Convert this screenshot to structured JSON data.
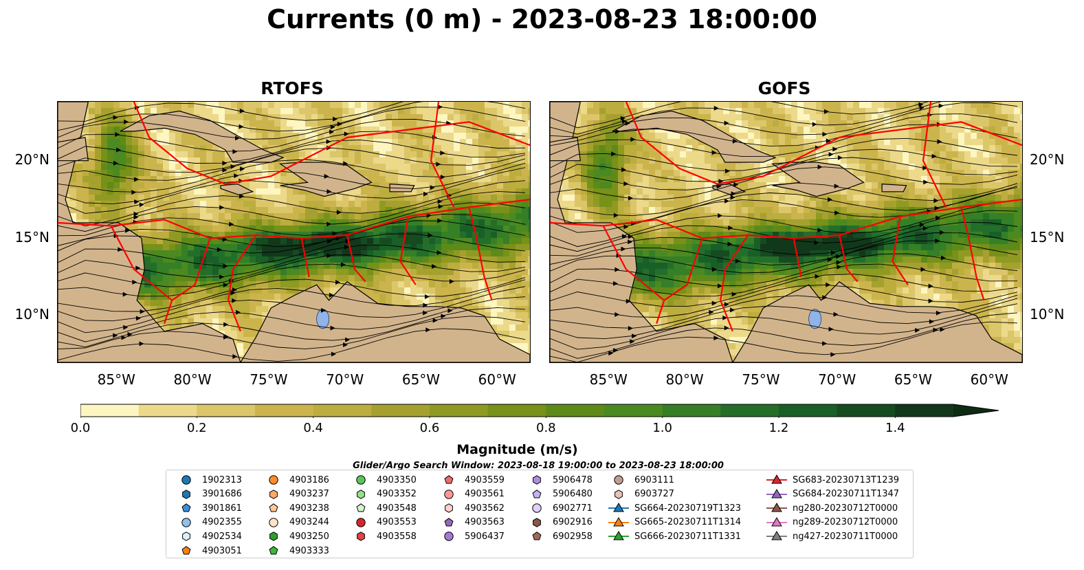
{
  "title": "Currents (0 m) - 2023-08-23 18:00:00",
  "panels": [
    {
      "title": "RTOFS",
      "id": "rtofs"
    },
    {
      "title": "GOFS",
      "id": "gofs"
    }
  ],
  "map": {
    "extent": {
      "lon_min": -89,
      "lon_max": -58,
      "lat_min": 7,
      "lat_max": 23.8
    },
    "lat_ticks": [
      "20°N",
      "15°N",
      "10°N"
    ],
    "lat_values": [
      20,
      15,
      10
    ],
    "lon_ticks": [
      "85°W",
      "80°W",
      "75°W",
      "70°W",
      "65°W",
      "60°W"
    ],
    "lon_values": [
      -85,
      -80,
      -75,
      -70,
      -65,
      -60
    ],
    "land_color": "#d2b48c",
    "boundary_color": "#ff0000"
  },
  "colorbar": {
    "title": "Magnitude (m/s)",
    "ticks": [
      "0.0",
      "0.2",
      "0.4",
      "0.6",
      "0.8",
      "1.0",
      "1.2",
      "1.4"
    ],
    "tick_values": [
      0.0,
      0.2,
      0.4,
      0.6,
      0.8,
      1.0,
      1.2,
      1.4
    ],
    "min": 0.0,
    "max": 1.5,
    "extend": "max",
    "colors": [
      "#fdf6c1",
      "#ecd98a",
      "#dcc66a",
      "#ccb44d",
      "#bcad3f",
      "#a6a12f",
      "#8f9a23",
      "#779119",
      "#5e8a1a",
      "#4a8a21",
      "#357f26",
      "#236f2a",
      "#195f28",
      "#164b22",
      "#11381a"
    ],
    "extension_color": "#0e2b14"
  },
  "search_window": "Glider/Argo Search Window: 2023-08-18 19:00:00 to 2023-08-23 18:00:00",
  "legend": {
    "columns": [
      [
        {
          "label": "1902313",
          "marker": "circle",
          "color": "#1f77b4"
        },
        {
          "label": "3901686",
          "marker": "hexagon",
          "color": "#1f77b4"
        },
        {
          "label": "3901861",
          "marker": "pentagon",
          "color": "#3b8fd6"
        },
        {
          "label": "4902355",
          "marker": "circle",
          "color": "#8ec1ec"
        },
        {
          "label": "4902534",
          "marker": "hexagon",
          "color": "#dbeefe"
        },
        {
          "label": "4903051",
          "marker": "pentagon",
          "color": "#ff7f0e"
        }
      ],
      [
        {
          "label": "4903186",
          "marker": "circle",
          "color": "#ff8c2a"
        },
        {
          "label": "4903237",
          "marker": "hexagon",
          "color": "#ffaa66"
        },
        {
          "label": "4903238",
          "marker": "pentagon",
          "color": "#ffc896"
        },
        {
          "label": "4903244",
          "marker": "circle",
          "color": "#ffe3c6"
        },
        {
          "label": "4903250",
          "marker": "hexagon",
          "color": "#2ca02c"
        },
        {
          "label": "4903333",
          "marker": "pentagon",
          "color": "#3cb63c"
        }
      ],
      [
        {
          "label": "4903350",
          "marker": "circle",
          "color": "#5cc45c"
        },
        {
          "label": "4903352",
          "marker": "hexagon",
          "color": "#98df8a"
        },
        {
          "label": "4903548",
          "marker": "pentagon",
          "color": "#d4f4cc"
        },
        {
          "label": "4903553",
          "marker": "circle",
          "color": "#d62728"
        },
        {
          "label": "4903558",
          "marker": "hexagon",
          "color": "#e04444"
        }
      ],
      [
        {
          "label": "4903559",
          "marker": "pentagon",
          "color": "#ef6a6a"
        },
        {
          "label": "4903561",
          "marker": "circle",
          "color": "#ff9896"
        },
        {
          "label": "4903562",
          "marker": "hexagon",
          "color": "#ffd0cf"
        },
        {
          "label": "4903563",
          "marker": "pentagon",
          "color": "#9467bd"
        },
        {
          "label": "5906437",
          "marker": "circle",
          "color": "#a57ad0"
        }
      ],
      [
        {
          "label": "5906478",
          "marker": "hexagon",
          "color": "#b08ddc"
        },
        {
          "label": "5906480",
          "marker": "pentagon",
          "color": "#c5b0f0"
        },
        {
          "label": "6902771",
          "marker": "circle",
          "color": "#e0d0fa"
        },
        {
          "label": "6902916",
          "marker": "hexagon",
          "color": "#8c564b"
        },
        {
          "label": "6902958",
          "marker": "pentagon",
          "color": "#a0685a"
        }
      ],
      [
        {
          "label": "6903111",
          "marker": "circle",
          "color": "#c49c94"
        },
        {
          "label": "6903727",
          "marker": "hexagon",
          "color": "#e8c4b8"
        },
        {
          "label": "SG664-20230719T1323",
          "marker": "triangle",
          "color": "#1f77b4"
        },
        {
          "label": "SG665-20230711T1314",
          "marker": "triangle",
          "color": "#ff7f0e"
        },
        {
          "label": "SG666-20230711T1331",
          "marker": "triangle",
          "color": "#2ca02c"
        }
      ],
      [
        {
          "label": "SG683-20230713T1239",
          "marker": "triangle",
          "color": "#d62728"
        },
        {
          "label": "SG684-20230711T1347",
          "marker": "triangle",
          "color": "#9467bd"
        },
        {
          "label": "ng280-20230712T0000",
          "marker": "triangle",
          "color": "#8c564b"
        },
        {
          "label": "ng289-20230712T0000",
          "marker": "triangle",
          "color": "#e377c2"
        },
        {
          "label": "ng427-20230711T0000",
          "marker": "triangle",
          "color": "#7f7f7f"
        }
      ]
    ]
  }
}
